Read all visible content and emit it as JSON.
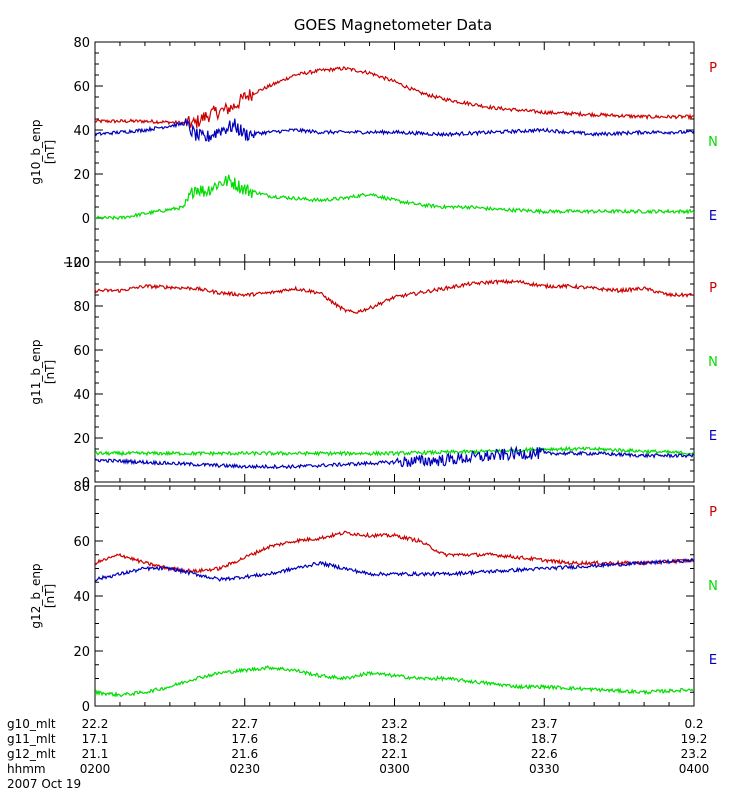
{
  "title": "GOES Magnetometer Data",
  "colors": {
    "P": "#cc0000",
    "N": "#00dd00",
    "E": "#0000bb",
    "axis": "#000000"
  },
  "chart_data": [
    {
      "type": "line",
      "ylabel": "g10_b_enp",
      "yunit": "[nT]",
      "ylim": [
        -20,
        80
      ],
      "yticks": [
        -20,
        0,
        20,
        40,
        60,
        80
      ],
      "ytick_labels": [
        "−20",
        "0",
        "20",
        "40",
        "60",
        "80"
      ],
      "xlim": [
        0,
        120
      ],
      "grid": false,
      "legend_position": "right",
      "series": [
        {
          "name": "P",
          "color": "#cc0000",
          "x": [
            0,
            10,
            20,
            22,
            24,
            26,
            28,
            30,
            35,
            40,
            45,
            50,
            55,
            60,
            65,
            70,
            75,
            80,
            90,
            100,
            110,
            120
          ],
          "y": [
            44,
            44,
            43,
            46,
            48,
            49,
            51,
            55,
            60,
            65,
            67,
            68,
            66,
            62,
            57,
            54,
            52,
            50,
            48,
            47,
            46,
            46
          ]
        },
        {
          "name": "N",
          "color": "#00dd00",
          "x": [
            0,
            5,
            10,
            18,
            20,
            22,
            25,
            27,
            30,
            35,
            40,
            45,
            50,
            55,
            60,
            65,
            70,
            75,
            80,
            90,
            100,
            110,
            120
          ],
          "y": [
            0,
            0,
            2,
            5,
            14,
            12,
            16,
            17,
            13,
            10,
            9,
            8,
            9,
            11,
            8,
            6,
            5,
            5,
            4,
            3,
            3,
            3,
            3
          ]
        },
        {
          "name": "E",
          "color": "#0000bb",
          "x": [
            0,
            10,
            18,
            20,
            22,
            25,
            28,
            30,
            35,
            40,
            45,
            50,
            60,
            70,
            80,
            90,
            100,
            110,
            120
          ],
          "y": [
            38,
            40,
            43,
            38,
            36,
            40,
            42,
            38,
            39,
            40,
            39,
            39,
            39,
            38,
            39,
            40,
            38,
            39,
            39
          ]
        }
      ]
    },
    {
      "type": "line",
      "ylabel": "g11_b_enp",
      "yunit": "[nT]",
      "ylim": [
        0,
        100
      ],
      "yticks": [
        0,
        20,
        40,
        60,
        80,
        100
      ],
      "ytick_labels": [
        "0",
        "20",
        "40",
        "60",
        "80",
        "100"
      ],
      "xlim": [
        0,
        120
      ],
      "grid": false,
      "legend_position": "right",
      "series": [
        {
          "name": "P",
          "color": "#cc0000",
          "x": [
            0,
            5,
            10,
            20,
            25,
            30,
            35,
            40,
            45,
            48,
            50,
            52,
            55,
            60,
            65,
            70,
            75,
            80,
            85,
            90,
            95,
            100,
            105,
            110,
            115,
            120
          ],
          "y": [
            87,
            87,
            89,
            88,
            86,
            85,
            86,
            88,
            86,
            81,
            78,
            77,
            79,
            84,
            86,
            88,
            90,
            91,
            91,
            89,
            89,
            88,
            87,
            88,
            85,
            85
          ]
        },
        {
          "name": "N",
          "color": "#00dd00",
          "x": [
            0,
            20,
            40,
            60,
            80,
            90,
            100,
            110,
            120
          ],
          "y": [
            13,
            13,
            13,
            13,
            14,
            15,
            15,
            14,
            13
          ]
        },
        {
          "name": "E",
          "color": "#0000bb",
          "x": [
            0,
            10,
            20,
            30,
            40,
            50,
            60,
            70,
            75,
            80,
            85,
            90,
            100,
            110,
            120
          ],
          "y": [
            10,
            9,
            8,
            7,
            7,
            8,
            9,
            10,
            11,
            12,
            13,
            13,
            13,
            12,
            12
          ]
        }
      ]
    },
    {
      "type": "line",
      "ylabel": "g12_b_enp",
      "yunit": "[nT]",
      "ylim": [
        0,
        80
      ],
      "yticks": [
        0,
        20,
        40,
        60,
        80
      ],
      "ytick_labels": [
        "0",
        "20",
        "40",
        "60",
        "80"
      ],
      "xlim": [
        0,
        120
      ],
      "grid": false,
      "legend_position": "right",
      "series": [
        {
          "name": "P",
          "color": "#cc0000",
          "x": [
            0,
            5,
            10,
            15,
            20,
            25,
            30,
            35,
            40,
            45,
            50,
            55,
            60,
            65,
            70,
            75,
            80,
            85,
            90,
            95,
            100,
            110,
            120
          ],
          "y": [
            52,
            55,
            52,
            50,
            49,
            50,
            54,
            58,
            60,
            61,
            63,
            62,
            62,
            60,
            55,
            55,
            55,
            54,
            53,
            52,
            52,
            52,
            53
          ]
        },
        {
          "name": "N",
          "color": "#00dd00",
          "x": [
            0,
            5,
            10,
            15,
            20,
            25,
            30,
            35,
            40,
            45,
            50,
            55,
            60,
            65,
            70,
            75,
            80,
            85,
            90,
            100,
            110,
            120
          ],
          "y": [
            5,
            4,
            5,
            7,
            10,
            12,
            13,
            14,
            13,
            11,
            10,
            12,
            11,
            10,
            10,
            9,
            8,
            7,
            7,
            6,
            5,
            6
          ]
        },
        {
          "name": "E",
          "color": "#0000bb",
          "x": [
            0,
            5,
            10,
            15,
            20,
            25,
            30,
            35,
            40,
            45,
            50,
            55,
            60,
            70,
            80,
            90,
            100,
            110,
            120
          ],
          "y": [
            46,
            48,
            50,
            50,
            48,
            46,
            47,
            48,
            50,
            52,
            50,
            48,
            48,
            48,
            49,
            50,
            51,
            52,
            53
          ]
        }
      ]
    }
  ],
  "xaxis": {
    "tick_positions": [
      0,
      30,
      60,
      90,
      120
    ],
    "rows": [
      {
        "label": "g10_mlt",
        "values": [
          "22.2",
          "22.7",
          "23.2",
          "23.7",
          "0.2"
        ]
      },
      {
        "label": "g11_mlt",
        "values": [
          "17.1",
          "17.6",
          "18.2",
          "18.7",
          "19.2"
        ]
      },
      {
        "label": "g12_mlt",
        "values": [
          "21.1",
          "21.6",
          "22.1",
          "22.6",
          "23.2"
        ]
      },
      {
        "label": "hhmm",
        "values": [
          "0200",
          "0230",
          "0300",
          "0330",
          "0400"
        ]
      }
    ],
    "date": "2007 Oct 19"
  }
}
